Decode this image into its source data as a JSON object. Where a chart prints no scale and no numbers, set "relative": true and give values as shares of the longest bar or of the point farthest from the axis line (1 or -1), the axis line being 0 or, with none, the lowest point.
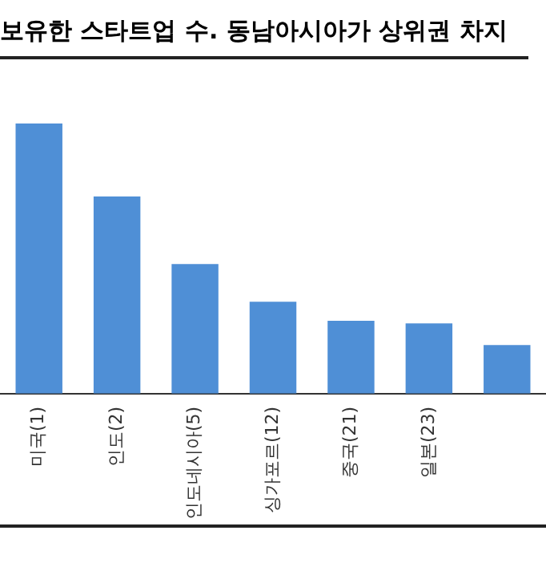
{
  "chart_data": {
    "type": "bar",
    "title": "보유한 스타트업 수. 동남아시아가 상위권 차지",
    "categories": [
      "미국(1)",
      "인도(2)",
      "인도네시아(5)",
      "싱가포르(12)",
      "중국(21)",
      "일본(23)",
      null
    ],
    "values": [
      1,
      0.73,
      0.48,
      0.34,
      0.27,
      0.26,
      0.18
    ],
    "color": "#4f8fd6",
    "relative": true,
    "grid": false,
    "legend": false
  }
}
